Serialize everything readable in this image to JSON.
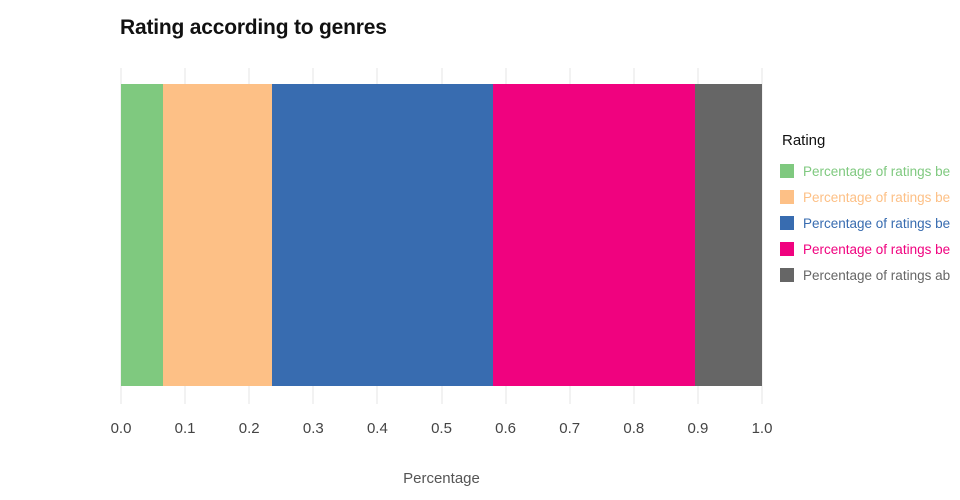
{
  "chart": {
    "title": "Rating according to genres",
    "xlabel": "Percentage"
  },
  "legend": {
    "title": "Rating"
  },
  "chart_data": {
    "type": "bar",
    "orientation": "horizontal",
    "stacked": true,
    "title": "Rating according to genres",
    "xlabel": "Percentage",
    "ylabel": "",
    "xlim": [
      0.0,
      1.0
    ],
    "xticks": [
      0.0,
      0.1,
      0.2,
      0.3,
      0.4,
      0.5,
      0.6,
      0.7,
      0.8,
      0.9,
      1.0
    ],
    "grid": true,
    "legend_title": "Rating",
    "legend_position": "right",
    "series": [
      {
        "name": "Percentage of ratings be",
        "value": 0.065,
        "color": "#7fc97f"
      },
      {
        "name": "Percentage of ratings be",
        "value": 0.17,
        "color": "#fdc086"
      },
      {
        "name": "Percentage of ratings be",
        "value": 0.345,
        "color": "#386cb0"
      },
      {
        "name": "Percentage of ratings be",
        "value": 0.315,
        "color": "#f0027f"
      },
      {
        "name": "Percentage of ratings ab",
        "value": 0.105,
        "color": "#666666"
      }
    ]
  }
}
